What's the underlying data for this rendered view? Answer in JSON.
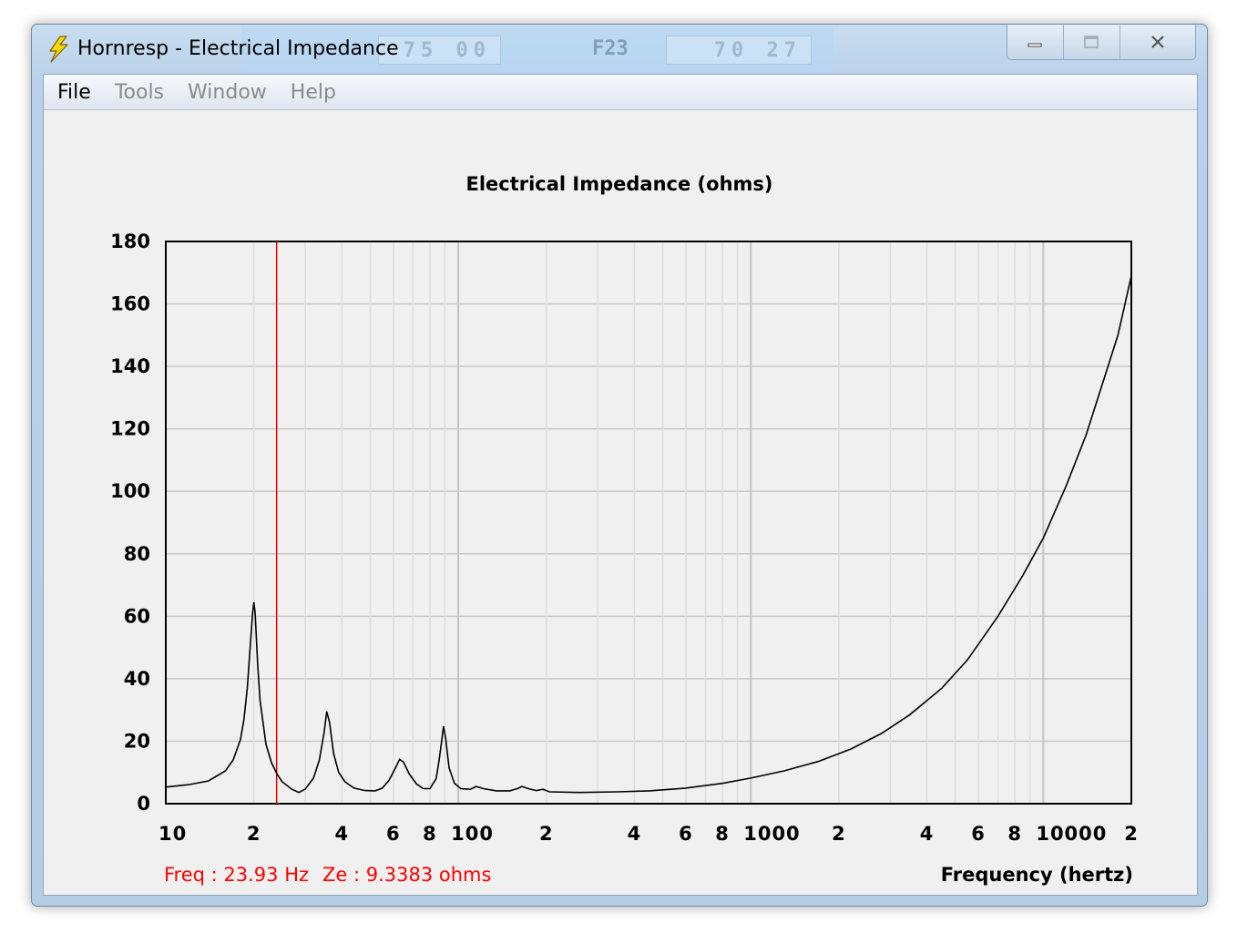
{
  "window": {
    "title": "Hornresp - Electrical Impedance",
    "icon": "lightning-icon",
    "controls": {
      "minimize": "minimize-icon",
      "maximize": "maximize-icon",
      "close": "close-icon"
    }
  },
  "background_app": {
    "field_left": "75 00",
    "label": "F23",
    "field_right": "70 27"
  },
  "menu": [
    "File",
    "Tools",
    "Window",
    "Help"
  ],
  "readout": {
    "freq": "Freq : 23.93 Hz",
    "ze": "Ze : 9.3383 ohms"
  },
  "colors": {
    "curve": "#000000",
    "cursor": "#e00000",
    "grid": "#c8c8c8",
    "readout": "#ff0000"
  },
  "chart_data": {
    "type": "line",
    "title": "Electrical Impedance (ohms)",
    "xlabel": "Frequency (hertz)",
    "ylabel": "",
    "xscale": "log",
    "xlim": [
      10,
      20000
    ],
    "ylim": [
      0,
      180
    ],
    "yticks": [
      0,
      20,
      40,
      60,
      80,
      100,
      120,
      140,
      160,
      180
    ],
    "xtick_labels": [
      {
        "x": 10,
        "label": "10"
      },
      {
        "x": 20,
        "label": "2"
      },
      {
        "x": 40,
        "label": "4"
      },
      {
        "x": 60,
        "label": "6"
      },
      {
        "x": 80,
        "label": "8"
      },
      {
        "x": 100,
        "label": "100"
      },
      {
        "x": 200,
        "label": "2"
      },
      {
        "x": 400,
        "label": "4"
      },
      {
        "x": 600,
        "label": "6"
      },
      {
        "x": 800,
        "label": "8"
      },
      {
        "x": 1000,
        "label": "1000"
      },
      {
        "x": 2000,
        "label": "2"
      },
      {
        "x": 4000,
        "label": "4"
      },
      {
        "x": 6000,
        "label": "6"
      },
      {
        "x": 8000,
        "label": "8"
      },
      {
        "x": 10000,
        "label": "10000"
      },
      {
        "x": 20000,
        "label": "2"
      }
    ],
    "cursor_x": 23.93,
    "grid": true,
    "series": [
      {
        "points": [
          [
            10,
            5.3
          ],
          [
            12,
            6.1
          ],
          [
            14,
            7.3
          ],
          [
            16,
            10.5
          ],
          [
            17,
            14
          ],
          [
            18,
            20.5
          ],
          [
            18.5,
            27
          ],
          [
            19,
            37
          ],
          [
            19.5,
            52
          ],
          [
            19.8,
            61
          ],
          [
            20,
            64.5
          ],
          [
            20.2,
            61
          ],
          [
            20.6,
            45
          ],
          [
            21,
            33
          ],
          [
            22,
            19
          ],
          [
            23,
            13
          ],
          [
            24,
            9.5
          ],
          [
            25,
            7
          ],
          [
            27,
            4.6
          ],
          [
            28.5,
            3.6
          ],
          [
            30,
            4.7
          ],
          [
            32,
            8.2
          ],
          [
            33.5,
            14
          ],
          [
            34.8,
            23
          ],
          [
            35.5,
            29.5
          ],
          [
            36.3,
            26
          ],
          [
            37.5,
            16
          ],
          [
            39,
            10
          ],
          [
            41,
            7
          ],
          [
            44,
            5
          ],
          [
            48,
            4.2
          ],
          [
            52,
            4.1
          ],
          [
            55,
            5
          ],
          [
            58,
            7.5
          ],
          [
            61,
            11.5
          ],
          [
            63,
            14.2
          ],
          [
            65,
            13.3
          ],
          [
            68,
            9.5
          ],
          [
            72,
            6.3
          ],
          [
            76,
            4.8
          ],
          [
            80,
            4.8
          ],
          [
            84,
            8
          ],
          [
            86,
            14
          ],
          [
            88,
            21
          ],
          [
            89,
            24.8
          ],
          [
            90.5,
            21
          ],
          [
            93,
            11.5
          ],
          [
            97,
            6.5
          ],
          [
            102,
            4.8
          ],
          [
            110,
            4.6
          ],
          [
            115,
            5.5
          ],
          [
            122,
            4.8
          ],
          [
            135,
            4.1
          ],
          [
            150,
            4.1
          ],
          [
            160,
            4.9
          ],
          [
            165,
            5.5
          ],
          [
            175,
            4.7
          ],
          [
            185,
            4.2
          ],
          [
            195,
            4.6
          ],
          [
            205,
            3.8
          ],
          [
            260,
            3.6
          ],
          [
            350,
            3.8
          ],
          [
            450,
            4.1
          ],
          [
            600,
            5
          ],
          [
            800,
            6.5
          ],
          [
            1000,
            8.2
          ],
          [
            1300,
            10.5
          ],
          [
            1700,
            13.5
          ],
          [
            2200,
            17.5
          ],
          [
            2800,
            22.5
          ],
          [
            3500,
            28.5
          ],
          [
            4500,
            37
          ],
          [
            5500,
            46
          ],
          [
            7000,
            60
          ],
          [
            8500,
            73
          ],
          [
            10000,
            85
          ],
          [
            12000,
            102
          ],
          [
            14000,
            118
          ],
          [
            16000,
            135
          ],
          [
            18000,
            150
          ],
          [
            20000,
            169
          ]
        ]
      }
    ]
  }
}
